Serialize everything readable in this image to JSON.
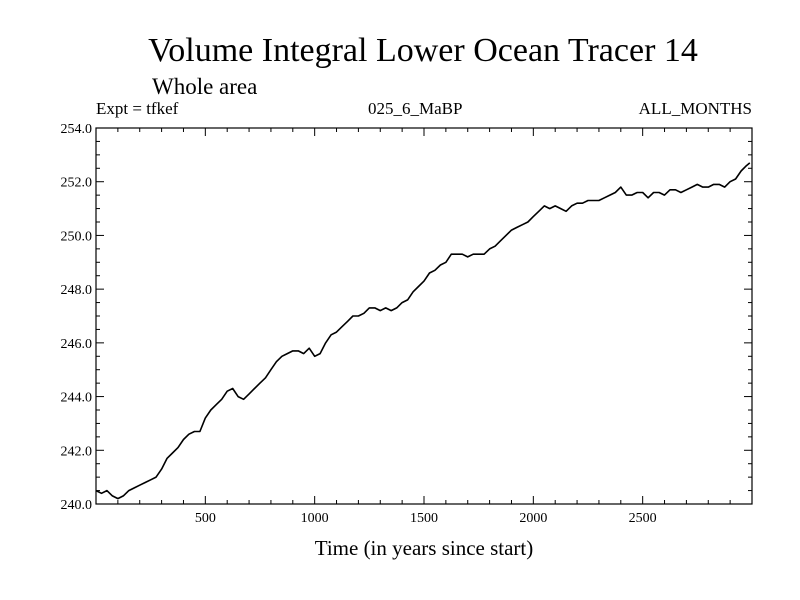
{
  "chart_data": {
    "type": "line",
    "title": "Volume Integral Lower Ocean Tracer 14",
    "subtitle": "Whole area",
    "experiment_label": "Expt = tfkef",
    "run_label": "025_6_MaBP",
    "period_label": "ALL_MONTHS",
    "xlabel": "Time (in years since start)",
    "ylabel": "",
    "xlim": [
      0,
      3000
    ],
    "ylim": [
      240.0,
      254.0
    ],
    "x_ticks": [
      500,
      1000,
      1500,
      2000,
      2500
    ],
    "x_tick_labels": [
      "500",
      "1000",
      "1500",
      "2000",
      "2500"
    ],
    "y_ticks": [
      240,
      242,
      244,
      246,
      248,
      250,
      252,
      254
    ],
    "y_tick_labels": [
      "240.0",
      "242.0",
      "244.0",
      "246.0",
      "248.0",
      "250.0",
      "252.0",
      "254.0"
    ],
    "grid": false,
    "line_color": "#000000",
    "series": [
      {
        "x": [
          0,
          25,
          50,
          75,
          100,
          125,
          150,
          175,
          200,
          225,
          250,
          275,
          300,
          325,
          350,
          375,
          400,
          425,
          450,
          475,
          500,
          525,
          550,
          575,
          600,
          625,
          650,
          675,
          700,
          725,
          750,
          775,
          800,
          825,
          850,
          875,
          900,
          925,
          950,
          975,
          1000,
          1025,
          1050,
          1075,
          1100,
          1125,
          1150,
          1175,
          1200,
          1225,
          1250,
          1275,
          1300,
          1325,
          1350,
          1375,
          1400,
          1425,
          1450,
          1475,
          1500,
          1525,
          1550,
          1575,
          1600,
          1625,
          1650,
          1675,
          1700,
          1725,
          1750,
          1775,
          1800,
          1825,
          1850,
          1875,
          1900,
          1925,
          1950,
          1975,
          2000,
          2025,
          2050,
          2075,
          2100,
          2125,
          2150,
          2175,
          2200,
          2225,
          2250,
          2275,
          2300,
          2325,
          2350,
          2375,
          2400,
          2425,
          2450,
          2475,
          2500,
          2525,
          2550,
          2575,
          2600,
          2625,
          2650,
          2675,
          2700,
          2725,
          2750,
          2775,
          2800,
          2825,
          2850,
          2875,
          2900,
          2925,
          2950,
          2975,
          2990
        ],
        "y": [
          240.5,
          240.4,
          240.5,
          240.3,
          240.2,
          240.3,
          240.5,
          240.6,
          240.7,
          240.8,
          240.9,
          241.0,
          241.3,
          241.7,
          241.9,
          242.1,
          242.4,
          242.6,
          242.7,
          242.7,
          243.2,
          243.5,
          243.7,
          243.9,
          244.2,
          244.3,
          244.0,
          243.9,
          244.1,
          244.3,
          244.5,
          244.7,
          245.0,
          245.3,
          245.5,
          245.6,
          245.7,
          245.7,
          245.6,
          245.8,
          245.5,
          245.6,
          246.0,
          246.3,
          246.4,
          246.6,
          246.8,
          247.0,
          247.0,
          247.1,
          247.3,
          247.3,
          247.2,
          247.3,
          247.2,
          247.3,
          247.5,
          247.6,
          247.9,
          248.1,
          248.3,
          248.6,
          248.7,
          248.9,
          249.0,
          249.3,
          249.3,
          249.3,
          249.2,
          249.3,
          249.3,
          249.3,
          249.5,
          249.6,
          249.8,
          250.0,
          250.2,
          250.3,
          250.4,
          250.5,
          250.7,
          250.9,
          251.1,
          251.0,
          251.1,
          251.0,
          250.9,
          251.1,
          251.2,
          251.2,
          251.3,
          251.3,
          251.3,
          251.4,
          251.5,
          251.6,
          251.8,
          251.5,
          251.5,
          251.6,
          251.6,
          251.4,
          251.6,
          251.6,
          251.5,
          251.7,
          251.7,
          251.6,
          251.7,
          251.8,
          251.9,
          251.8,
          251.8,
          251.9,
          251.9,
          251.8,
          252.0,
          252.1,
          252.4,
          252.6,
          252.7
        ]
      }
    ]
  }
}
